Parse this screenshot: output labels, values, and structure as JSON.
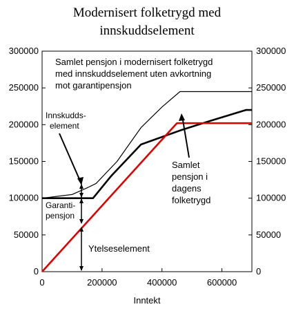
{
  "chart_data": {
    "type": "line",
    "title": "Modernisert folketrygd med",
    "subtitle": "innskuddselement",
    "xlabel": "Inntekt",
    "ylabel": "",
    "xlim": [
      0,
      700000
    ],
    "ylim": [
      0,
      300000
    ],
    "x_ticks": [
      "0",
      "200000",
      "400000",
      "600000"
    ],
    "x_tick_values": [
      0,
      200000,
      400000,
      600000
    ],
    "y_ticks": [
      "0",
      "50000",
      "100000",
      "150000",
      "200000",
      "250000",
      "300000"
    ],
    "y_tick_values": [
      0,
      50000,
      100000,
      150000,
      200000,
      250000,
      300000
    ],
    "grid": false,
    "series": [
      {
        "color": "#000000",
        "style": "thin",
        "x": [
          0,
          100000,
          150000,
          180000,
          250000,
          330000,
          400000,
          460000,
          700000
        ],
        "y": [
          100000,
          105000,
          114000,
          120000,
          150000,
          196000,
          224000,
          245000,
          245000
        ]
      },
      {
        "color": "#000000",
        "style": "thick",
        "x": [
          0,
          170000,
          230000,
          330000,
          460000,
          560000,
          680000,
          700000
        ],
        "y": [
          100000,
          100000,
          130000,
          173000,
          192000,
          205000,
          220000,
          220000
        ]
      },
      {
        "color": "#e00000",
        "style": "thick",
        "x": [
          0,
          450000,
          700000
        ],
        "y": [
          0,
          202000,
          202000
        ]
      }
    ],
    "annotations": {
      "top": [
        "Samlet pensjon i modernisert folketrygd",
        "med innskuddselement uten avkortning",
        "mot garantipensjon"
      ],
      "innskudd": [
        "Innskudds-",
        "element"
      ],
      "garanti": [
        "Garanti-",
        "pensjon"
      ],
      "ytelse": "Ytelseselement",
      "dagens": [
        "Samlet",
        "pensjon i",
        "dagens",
        "folketrygd"
      ]
    }
  }
}
